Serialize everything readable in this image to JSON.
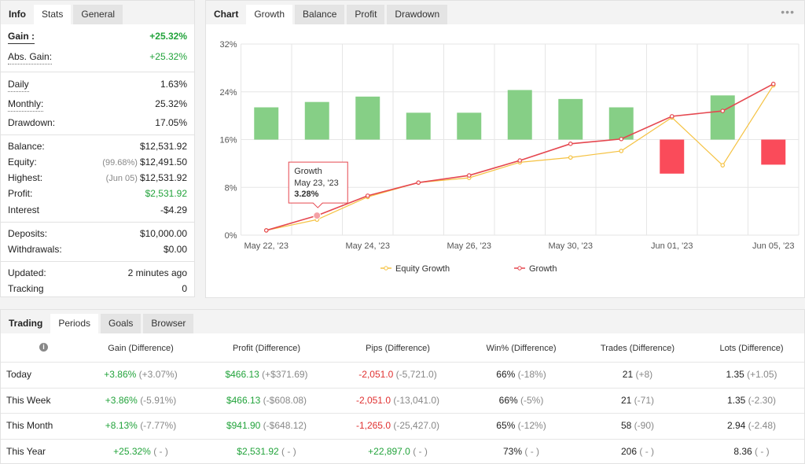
{
  "info_panel": {
    "title": "Info",
    "tabs": [
      "Stats",
      "General"
    ],
    "groups": [
      [
        {
          "label": "Gain :",
          "value": "+25.32%",
          "color": "#22a33b",
          "strong": true
        },
        {
          "label": "Abs. Gain:",
          "value": "+25.32%",
          "color": "#22a33b"
        }
      ],
      [
        {
          "label": "Daily",
          "value": "1.63%"
        },
        {
          "label": "Monthly:",
          "value": "25.32%"
        },
        {
          "label": "Drawdown:",
          "value": "17.05%"
        }
      ],
      [
        {
          "label": "Balance:",
          "value": "$12,531.92"
        },
        {
          "label": "Equity:",
          "note": "(99.68%)",
          "value": "$12,491.50"
        },
        {
          "label": "Highest:",
          "note": "(Jun 05)",
          "value": "$12,531.92"
        },
        {
          "label": "Profit:",
          "value": "$2,531.92",
          "color": "#22a33b"
        },
        {
          "label": "Interest",
          "value": "-$4.29"
        }
      ],
      [
        {
          "label": "Deposits:",
          "value": "$10,000.00"
        },
        {
          "label": "Withdrawals:",
          "value": "$0.00"
        }
      ],
      [
        {
          "label": "Updated:",
          "value": "2 minutes ago"
        },
        {
          "label": "Tracking",
          "value": "0"
        }
      ]
    ]
  },
  "chart_panel": {
    "title": "Chart",
    "tabs": [
      "Growth",
      "Balance",
      "Profit",
      "Drawdown"
    ],
    "chart_data": {
      "type": "combo",
      "categories": [
        "May 22, '23",
        null,
        "May 24, '23",
        null,
        "May 26, '23",
        null,
        "May 30, '23",
        null,
        "Jun 01, '23",
        null,
        "Jun 05, '23"
      ],
      "series": [
        {
          "name": "Equity Growth",
          "color": "#f5c242",
          "values": [
            0.8,
            2.6,
            6.4,
            8.8,
            9.6,
            12.2,
            13.0,
            14.1,
            19.7,
            11.7,
            25.1
          ]
        },
        {
          "name": "Growth",
          "color": "#e5474f",
          "values": [
            0.8,
            3.28,
            6.6,
            8.8,
            10.0,
            12.5,
            15.3,
            16.1,
            19.9,
            20.8,
            25.32
          ],
          "value_labels": [
            null,
            "3.28%",
            null,
            null,
            null,
            null,
            null,
            null,
            null,
            null,
            null
          ]
        }
      ],
      "bars": {
        "axis": "y2",
        "values": [
          5.4,
          6.3,
          7.2,
          4.5,
          4.5,
          8.3,
          6.8,
          5.4,
          -5.7,
          7.4,
          -4.2
        ],
        "color": "#86cf86",
        "negative_color": "#fa4b5a"
      },
      "ylim": [
        0,
        32
      ],
      "yticks": [
        {
          "value": 0,
          "label": "0%"
        },
        {
          "value": 8,
          "label": "8%"
        },
        {
          "value": 16,
          "label": "16%"
        },
        {
          "value": 24,
          "label": "24%"
        },
        {
          "value": 32,
          "label": "32%"
        }
      ],
      "y2lim": [
        -16,
        16
      ],
      "grid": true,
      "tooltip": {
        "date": "May 23, '23"
      }
    }
  },
  "periods_panel": {
    "title": "Trading",
    "tabs": [
      "Periods",
      "Goals",
      "Browser"
    ],
    "columns": [
      {
        "label": "Gain (Difference)",
        "colored": true
      },
      {
        "label": "Profit (Difference)",
        "colored": true
      },
      {
        "label": "Pips (Difference)",
        "colored": true
      },
      {
        "label": "Win% (Difference)"
      },
      {
        "label": "Trades (Difference)"
      },
      {
        "label": "Lots (Difference)"
      }
    ],
    "rows": [
      {
        "label": "Today",
        "cells": [
          {
            "main": "+3.86%",
            "diff": "(+3.07%)"
          },
          {
            "main": "$466.13",
            "diff": "(+$371.69)"
          },
          {
            "main": "-2,051.0",
            "diff": "(-5,721.0)"
          },
          {
            "main": "66%",
            "diff": "(-18%)"
          },
          {
            "main": "21",
            "diff": "(+8)"
          },
          {
            "main": "1.35",
            "diff": "(+1.05)"
          }
        ]
      },
      {
        "label": "This Week",
        "cells": [
          {
            "main": "+3.86%",
            "diff": "(-5.91%)"
          },
          {
            "main": "$466.13",
            "diff": "(-$608.08)"
          },
          {
            "main": "-2,051.0",
            "diff": "(-13,041.0)"
          },
          {
            "main": "66%",
            "diff": "(-5%)"
          },
          {
            "main": "21",
            "diff": "(-71)"
          },
          {
            "main": "1.35",
            "diff": "(-2.30)"
          }
        ]
      },
      {
        "label": "This Month",
        "cells": [
          {
            "main": "+8.13%",
            "diff": "(-7.77%)"
          },
          {
            "main": "$941.90",
            "diff": "(-$648.12)"
          },
          {
            "main": "-1,265.0",
            "diff": "(-25,427.0)"
          },
          {
            "main": "65%",
            "diff": "(-12%)"
          },
          {
            "main": "58",
            "diff": "(-90)"
          },
          {
            "main": "2.94",
            "diff": "(-2.48)"
          }
        ]
      },
      {
        "label": "This Year",
        "cells": [
          {
            "main": "+25.32%",
            "diff": "( - )"
          },
          {
            "main": "$2,531.92",
            "diff": "( - )"
          },
          {
            "main": "+22,897.0",
            "diff": "( - )"
          },
          {
            "main": "73%",
            "diff": "( - )"
          },
          {
            "main": "206",
            "diff": "( - )"
          },
          {
            "main": "8.36",
            "diff": "( - )"
          }
        ]
      }
    ]
  }
}
